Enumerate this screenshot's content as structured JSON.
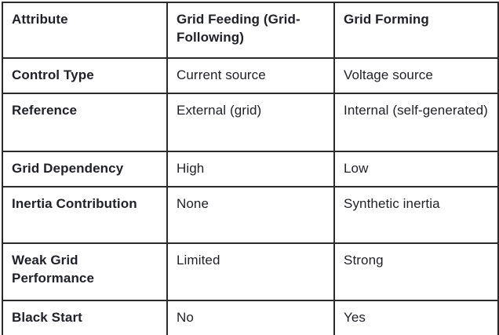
{
  "colors": {
    "background": "#ffffff",
    "border": "#2b2b2b",
    "text": "#212227"
  },
  "table": {
    "headers": [
      "Attribute",
      "Grid Feeding (Grid-Following)",
      "Grid Forming"
    ],
    "rows": [
      {
        "cells": [
          "Control Type",
          "Current source",
          "Voltage source"
        ]
      },
      {
        "cells": [
          "Reference",
          "External (grid)",
          "Internal (self-generated)"
        ]
      },
      {
        "cells": [
          "Grid Dependency",
          "High",
          "Low"
        ]
      },
      {
        "cells": [
          "Inertia Contribution",
          "None",
          "Synthetic inertia"
        ]
      },
      {
        "cells": [
          "Weak Grid Performance",
          "Limited",
          "Strong"
        ]
      },
      {
        "cells": [
          "Black Start",
          "No",
          "Yes"
        ]
      }
    ]
  }
}
